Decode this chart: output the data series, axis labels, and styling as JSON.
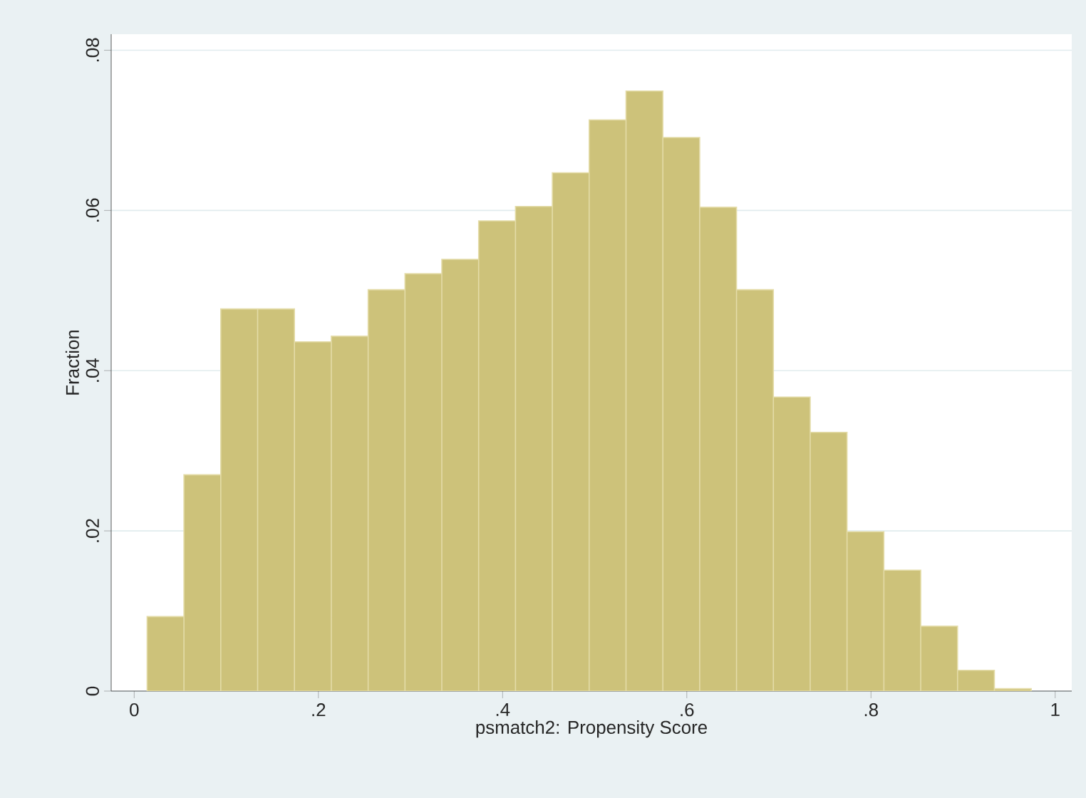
{
  "chart_data": {
    "type": "histogram",
    "bins": [
      0.014,
      0.054,
      0.094,
      0.134,
      0.174,
      0.214,
      0.254,
      0.294,
      0.334,
      0.374,
      0.414,
      0.454,
      0.494,
      0.534,
      0.574,
      0.614,
      0.654,
      0.694,
      0.734,
      0.774,
      0.814,
      0.854,
      0.894,
      0.934,
      0.974
    ],
    "values": [
      0.0093,
      0.027,
      0.0477,
      0.0477,
      0.0436,
      0.0443,
      0.0501,
      0.0521,
      0.0539,
      0.0587,
      0.0605,
      0.0647,
      0.0713,
      0.0749,
      0.0691,
      0.0604,
      0.0501,
      0.0367,
      0.0323,
      0.0199,
      0.0151,
      0.0081,
      0.0026,
      0.0003
    ],
    "color": "#cdc27a",
    "xlabel": "psmatch2: Propensity Score",
    "ylabel": "Fraction",
    "xlim": [
      -0.025,
      1.018
    ],
    "ylim": [
      0,
      0.082
    ],
    "xticks": [
      0,
      {
        "value": 0.2,
        "label": ".2"
      },
      {
        "value": 0.4,
        "label": ".4"
      },
      {
        "value": 0.6,
        "label": ".6"
      },
      {
        "value": 0.8,
        "label": ".8"
      },
      1
    ],
    "yticks": [
      0,
      {
        "value": 0.02,
        "label": ".02"
      },
      {
        "value": 0.04,
        "label": ".04"
      },
      {
        "value": 0.06,
        "label": ".06"
      },
      {
        "value": 0.08,
        "label": ".08"
      }
    ],
    "grid": "y"
  }
}
